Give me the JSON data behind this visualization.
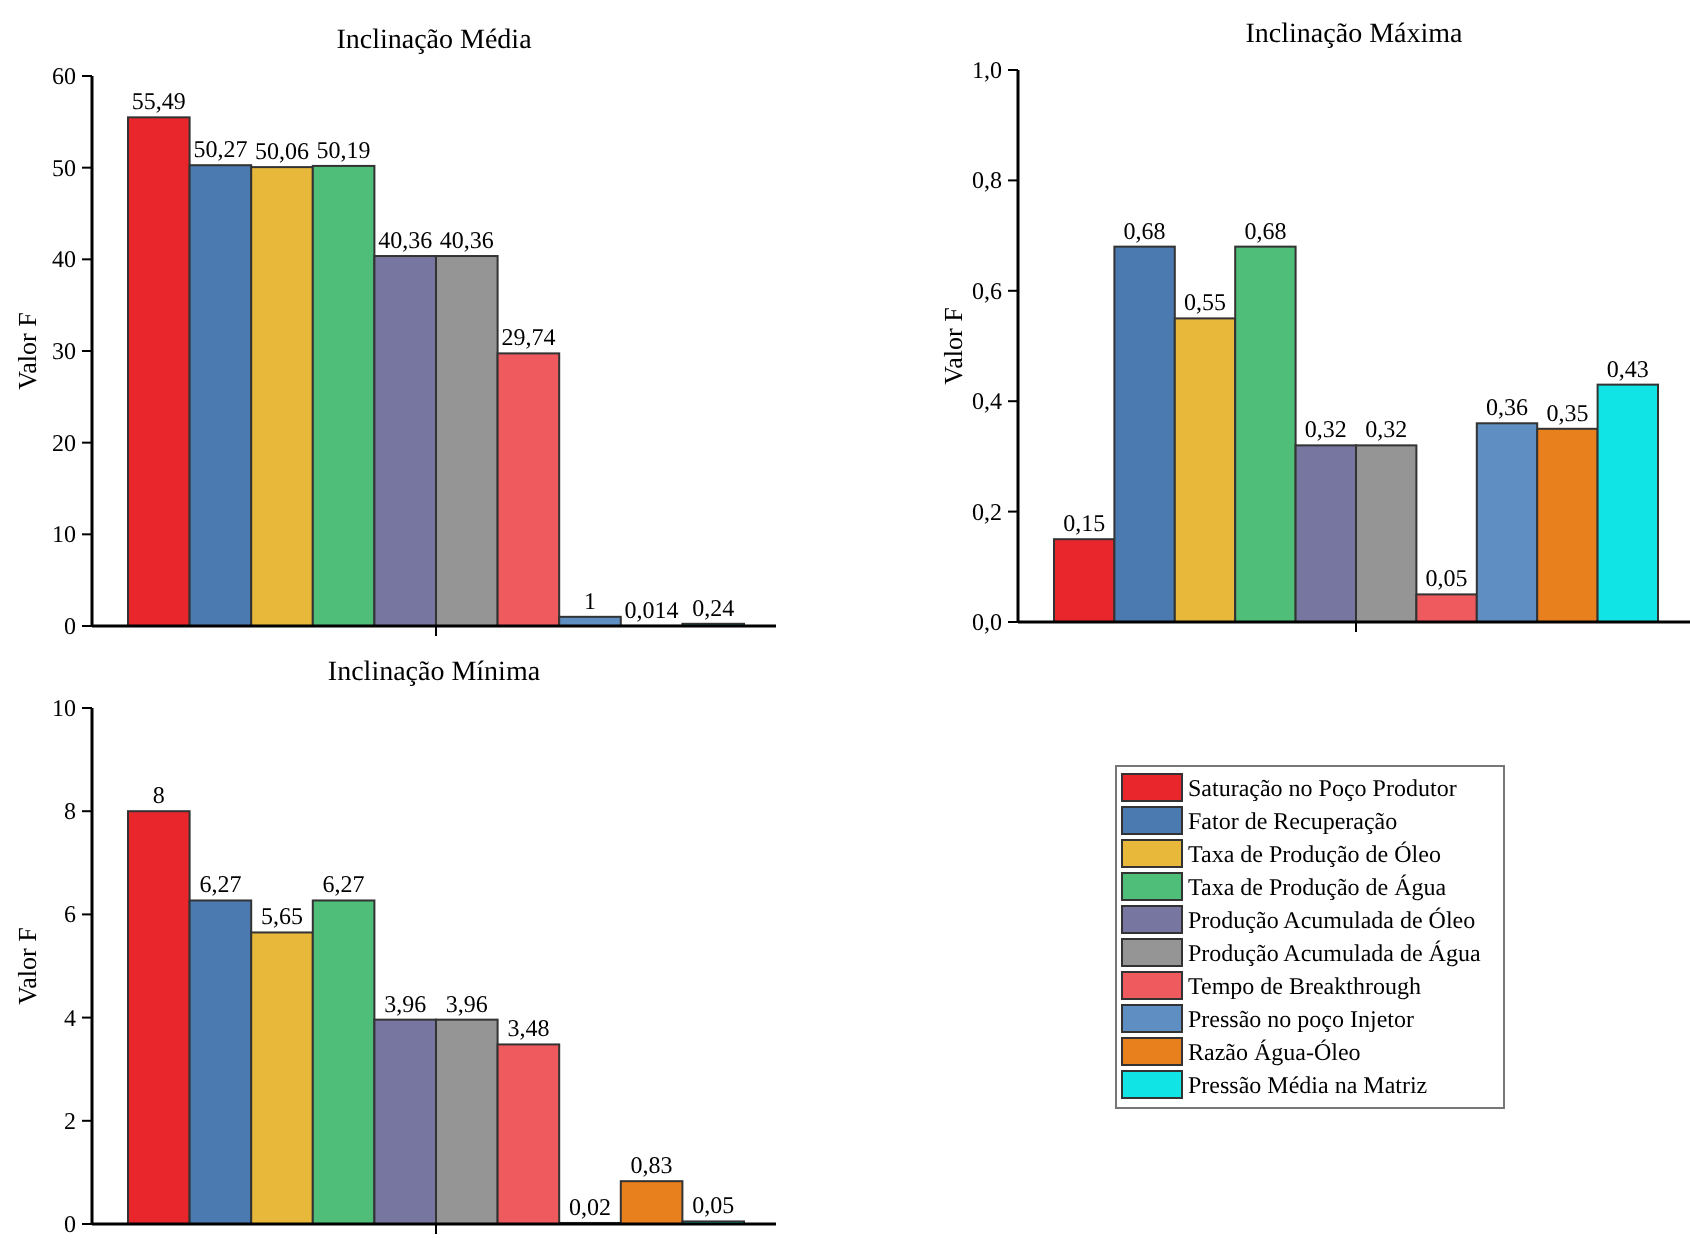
{
  "chart_data": [
    {
      "type": "bar",
      "title": "Inclinação Média",
      "ylabel": "Valor F",
      "categories": [
        null
      ],
      "ylim": [
        0,
        60
      ],
      "yticks": [
        0,
        10,
        20,
        30,
        40,
        50,
        60
      ],
      "grid": false,
      "legend": false,
      "tick_labels": "y",
      "series": [
        {
          "color": "#e8262b",
          "values": [
            55.49
          ],
          "value_labels": [
            "55,49"
          ]
        },
        {
          "color": "#4a7ab0",
          "values": [
            50.27
          ],
          "value_labels": [
            "50,27"
          ]
        },
        {
          "color": "#e8b83a",
          "values": [
            50.06
          ],
          "value_labels": [
            "50,06"
          ]
        },
        {
          "color": "#4fbe78",
          "values": [
            50.19
          ],
          "value_labels": [
            "50,19"
          ]
        },
        {
          "color": "#7676a0",
          "values": [
            40.36
          ],
          "value_labels": [
            "40,36"
          ]
        },
        {
          "color": "#959595",
          "values": [
            40.36
          ],
          "value_labels": [
            "40,36"
          ]
        },
        {
          "color": "#ee5a5e",
          "values": [
            29.74
          ],
          "value_labels": [
            "29,74"
          ]
        },
        {
          "color": "#5f8fc2",
          "values": [
            1
          ],
          "value_labels": [
            "1"
          ]
        },
        {
          "color": "#e8801e",
          "values": [
            0.014
          ],
          "value_labels": [
            "0,014"
          ]
        },
        {
          "color": "#10e4e4",
          "values": [
            0.24
          ],
          "value_labels": [
            "0,24"
          ]
        }
      ]
    },
    {
      "type": "bar",
      "title": "Inclinação Máxima",
      "ylabel": "Valor F",
      "categories": [
        null
      ],
      "ylim": [
        0,
        1
      ],
      "yticks": [
        {
          "value": 0,
          "label": "0,0"
        },
        {
          "value": 0.2,
          "label": "0,2"
        },
        {
          "value": 0.4,
          "label": "0,4"
        },
        {
          "value": 0.6,
          "label": "0,6"
        },
        {
          "value": 0.8,
          "label": "0,8"
        },
        {
          "value": 1,
          "label": "1,0"
        }
      ],
      "grid": false,
      "legend": false,
      "tick_labels": "y",
      "series": [
        {
          "color": "#e8262b",
          "values": [
            0.15
          ],
          "value_labels": [
            "0,15"
          ]
        },
        {
          "color": "#4a7ab0",
          "values": [
            0.68
          ],
          "value_labels": [
            "0,68"
          ]
        },
        {
          "color": "#e8b83a",
          "values": [
            0.55
          ],
          "value_labels": [
            "0,55"
          ]
        },
        {
          "color": "#4fbe78",
          "values": [
            0.68
          ],
          "value_labels": [
            "0,68"
          ]
        },
        {
          "color": "#7676a0",
          "values": [
            0.32
          ],
          "value_labels": [
            "0,32"
          ]
        },
        {
          "color": "#959595",
          "values": [
            0.32
          ],
          "value_labels": [
            "0,32"
          ]
        },
        {
          "color": "#ee5a5e",
          "values": [
            0.05
          ],
          "value_labels": [
            "0,05"
          ]
        },
        {
          "color": "#5f8fc2",
          "values": [
            0.36
          ],
          "value_labels": [
            "0,36"
          ]
        },
        {
          "color": "#e8801e",
          "values": [
            0.35
          ],
          "value_labels": [
            "0,35"
          ]
        },
        {
          "color": "#10e4e4",
          "values": [
            0.43
          ],
          "value_labels": [
            "0,43"
          ]
        }
      ]
    },
    {
      "type": "bar",
      "title": "Inclinação Mínima",
      "ylabel": "Valor F",
      "categories": [
        null
      ],
      "ylim": [
        0,
        10
      ],
      "yticks": [
        0,
        2,
        4,
        6,
        8,
        10
      ],
      "grid": false,
      "legend": "right",
      "tick_labels": "y",
      "series": [
        {
          "name": "Saturação no Poço Produtor",
          "color": "#e8262b",
          "values": [
            8
          ],
          "value_labels": [
            "8"
          ]
        },
        {
          "name": "Fator de Recuperação",
          "color": "#4a7ab0",
          "values": [
            6.27
          ],
          "value_labels": [
            "6,27"
          ]
        },
        {
          "name": "Taxa de Produção de Óleo",
          "color": "#e8b83a",
          "values": [
            5.65
          ],
          "value_labels": [
            "5,65"
          ]
        },
        {
          "name": "Taxa de Produção de Água",
          "color": "#4fbe78",
          "values": [
            6.27
          ],
          "value_labels": [
            "6,27"
          ]
        },
        {
          "name": "Produção Acumulada de Óleo",
          "color": "#7676a0",
          "values": [
            3.96
          ],
          "value_labels": [
            "3,96"
          ]
        },
        {
          "name": "Produção Acumulada de Água",
          "color": "#959595",
          "values": [
            3.96
          ],
          "value_labels": [
            "3,96"
          ]
        },
        {
          "name": "Tempo de Breakthrough",
          "color": "#ee5a5e",
          "values": [
            3.48
          ],
          "value_labels": [
            "3,48"
          ]
        },
        {
          "name": "Pressão no poço Injetor",
          "color": "#5f8fc2",
          "values": [
            0.02
          ],
          "value_labels": [
            "0,02"
          ]
        },
        {
          "name": "Razão Água-Óleo",
          "color": "#e8801e",
          "values": [
            0.83
          ],
          "value_labels": [
            "0,83"
          ]
        },
        {
          "name": "Pressão Média na Matriz",
          "color": "#10e4e4",
          "values": [
            0.05
          ],
          "value_labels": [
            "0,05"
          ]
        }
      ]
    }
  ]
}
